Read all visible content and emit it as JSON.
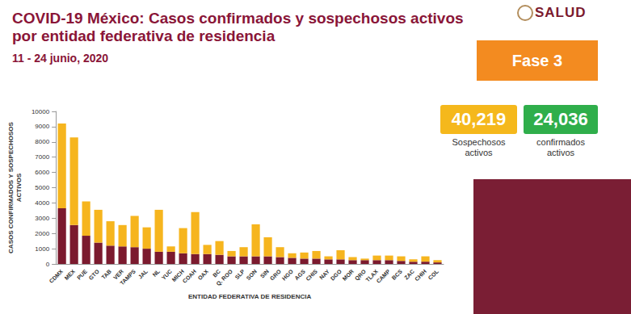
{
  "header": {
    "logo": "SALUD",
    "phase": "Fase 3",
    "phase_color": "#f38b20"
  },
  "cards": [
    {
      "number": "40,219",
      "label": "Sospechosos activos",
      "color": "#f5b81c"
    },
    {
      "number": "24,036",
      "label": "confirmados activos",
      "color": "#2fae4b"
    }
  ],
  "chart_data": {
    "type": "bar",
    "title": "COVID-19 México: Casos confirmados y sospechosos activos\npor entidad federativa de residencia",
    "subtitle": "11 - 24 junio, 2020",
    "x_label": "ENTIDAD FEDERATIVA DE RESIDENCIA",
    "y_label": "CASOS CONFIRMADOS Y SOSPECHOSOS\nACTIVOS",
    "categories": [
      "CDMX",
      "MEX",
      "PUE",
      "GTO",
      "TAB",
      "VER",
      "TAMPS",
      "JAL",
      "NL",
      "YUC",
      "MICH",
      "COAH",
      "OAX",
      "BC",
      "Q. ROO",
      "SLP",
      "SON",
      "SIN",
      "GRO",
      "HGO",
      "AGS",
      "CHIS",
      "NAY",
      "DGO",
      "MOR",
      "QRO",
      "TLAX",
      "CAMP",
      "BCS",
      "ZAC",
      "CHIH",
      "COL"
    ],
    "series": [
      {
        "color": "#7b1a2e",
        "values": [
          3650,
          2550,
          1850,
          1400,
          1200,
          1150,
          1100,
          1000,
          800,
          800,
          700,
          650,
          650,
          600,
          500,
          500,
          500,
          500,
          450,
          400,
          350,
          350,
          300,
          300,
          250,
          250,
          250,
          250,
          200,
          150,
          150,
          100
        ]
      },
      {
        "color": "#f6b51e",
        "values": [
          5550,
          5750,
          2250,
          2150,
          1600,
          1400,
          2050,
          1400,
          2750,
          350,
          1650,
          2750,
          600,
          900,
          350,
          600,
          2100,
          1250,
          650,
          300,
          400,
          500,
          200,
          600,
          200,
          100,
          300,
          300,
          300,
          150,
          350,
          150
        ]
      }
    ],
    "stacked": true,
    "ylim": [
      0,
      10000
    ],
    "yticks": [
      0,
      1000,
      2000,
      3000,
      4000,
      5000,
      6000,
      7000,
      8000,
      9000,
      10000
    ],
    "grid": false
  }
}
